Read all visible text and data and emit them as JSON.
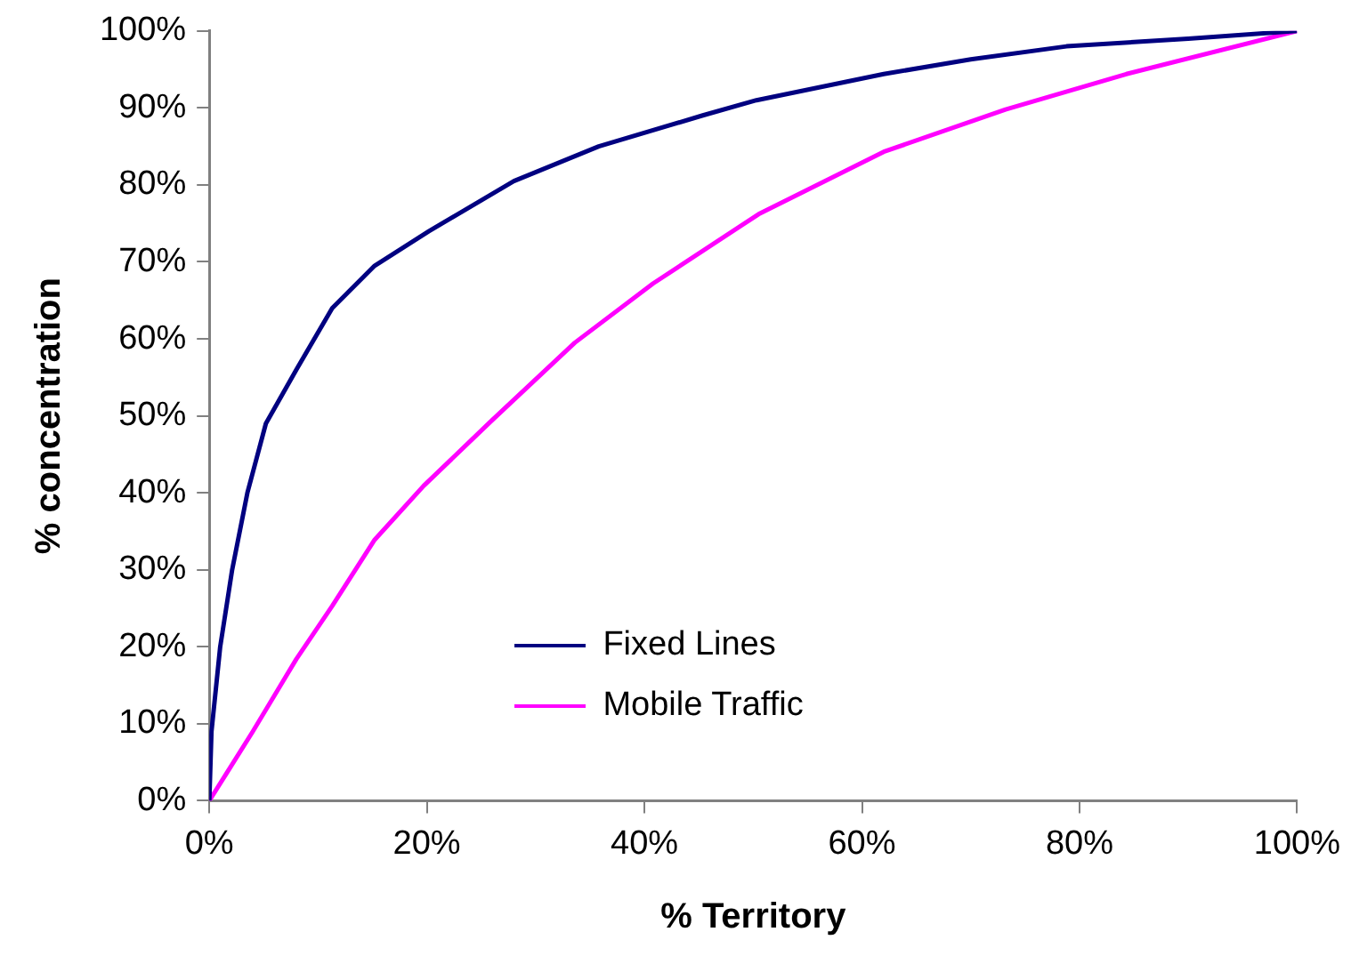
{
  "chart_data": {
    "type": "line",
    "xlabel": "% Territory",
    "ylabel": "% concentration",
    "xlim": [
      0,
      100
    ],
    "ylim": [
      0,
      100
    ],
    "xticks": [
      {
        "value": 0,
        "label": "0%"
      },
      {
        "value": 20,
        "label": "20%"
      },
      {
        "value": 40,
        "label": "40%"
      },
      {
        "value": 60,
        "label": "60%"
      },
      {
        "value": 80,
        "label": "80%"
      },
      {
        "value": 100,
        "label": "100%"
      }
    ],
    "yticks": [
      {
        "value": 0,
        "label": "0%"
      },
      {
        "value": 10,
        "label": "10%"
      },
      {
        "value": 20,
        "label": "20%"
      },
      {
        "value": 30,
        "label": "30%"
      },
      {
        "value": 40,
        "label": "40%"
      },
      {
        "value": 50,
        "label": "50%"
      },
      {
        "value": 60,
        "label": "60%"
      },
      {
        "value": 70,
        "label": "70%"
      },
      {
        "value": 80,
        "label": "80%"
      },
      {
        "value": 90,
        "label": "90%"
      },
      {
        "value": 100,
        "label": "100%"
      }
    ],
    "grid": false,
    "legend": "bottom",
    "marker": "none",
    "line_style": "solid",
    "series": [
      {
        "name": "Fixed Lines",
        "color": "#000080",
        "x": [
          0,
          0.2,
          1,
          2.1,
          3.5,
          5.2,
          8,
          11.3,
          15.2,
          20.2,
          28,
          35.8,
          45.3,
          50.3,
          62,
          70,
          78.8,
          90,
          100
        ],
        "values": [
          0,
          9,
          20,
          30,
          40,
          49,
          56,
          64,
          69.5,
          74,
          80.5,
          85,
          89,
          91,
          94.4,
          96.3,
          98,
          99,
          100
        ]
      },
      {
        "name": "Mobile Traffic",
        "color": "#ff00ff",
        "x": [
          0,
          4,
          8,
          11.3,
          15.2,
          19.7,
          25.9,
          33.6,
          40.8,
          50.5,
          62,
          73.2,
          84.3,
          100
        ],
        "values": [
          0,
          9,
          18.4,
          25.3,
          33.9,
          40.9,
          49.3,
          59.5,
          67.2,
          76.2,
          84.3,
          89.8,
          94.4,
          100
        ]
      }
    ]
  }
}
